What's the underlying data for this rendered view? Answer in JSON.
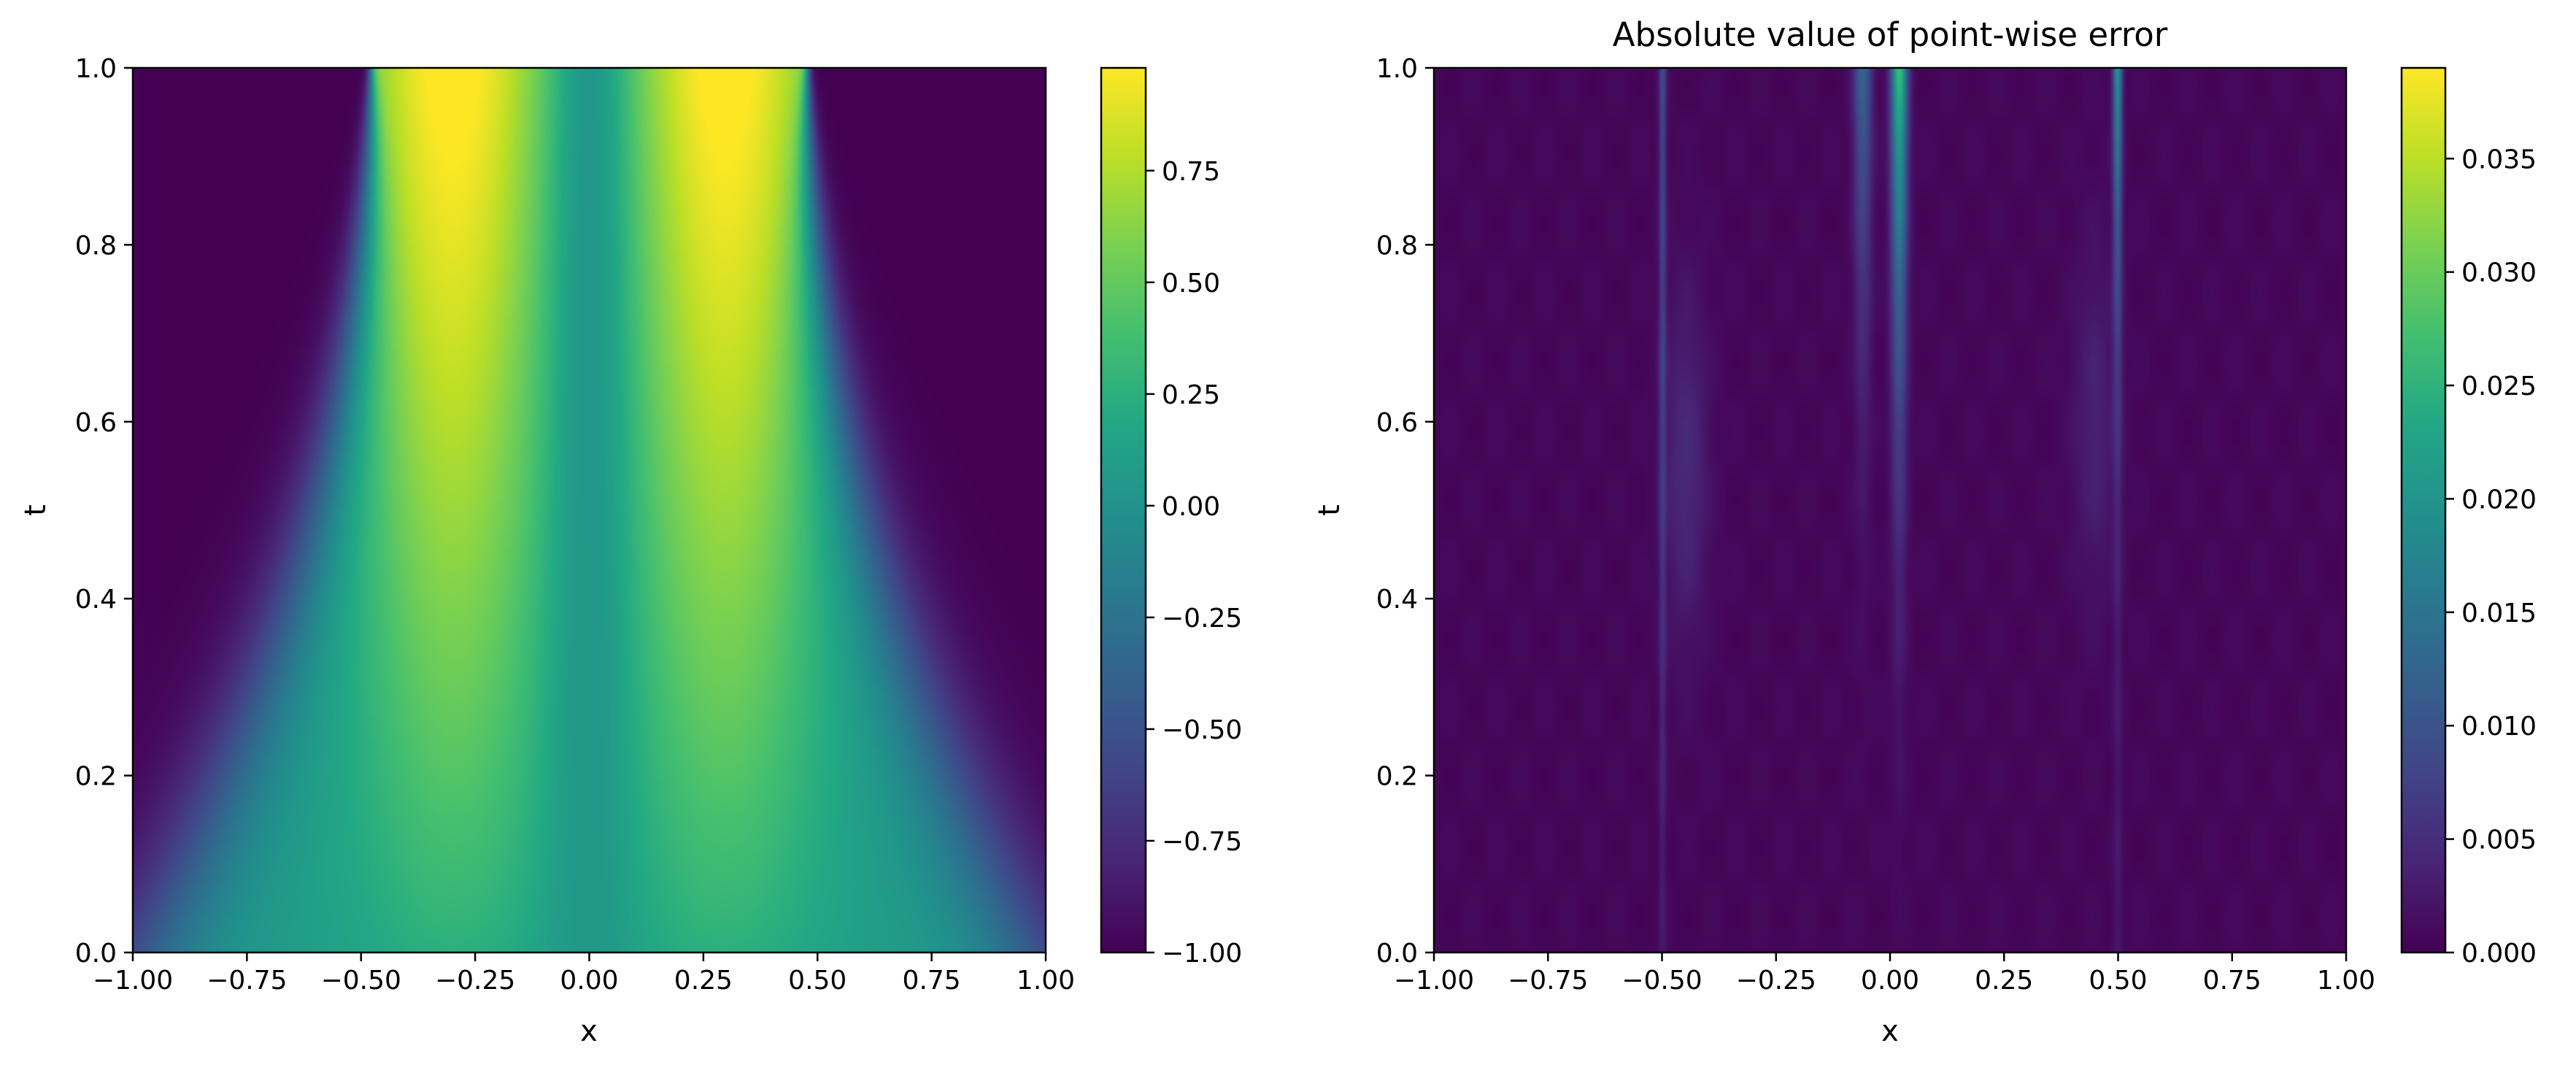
{
  "chart_data": [
    {
      "type": "heatmap",
      "title": "",
      "xlabel": "x",
      "ylabel": "t",
      "xlim": [
        -1.0,
        1.0
      ],
      "ylim": [
        0.0,
        1.0
      ],
      "x_ticks": [
        "−1.00",
        "−0.75",
        "−0.50",
        "−0.25",
        "0.00",
        "0.25",
        "0.50",
        "0.75",
        "1.00"
      ],
      "y_ticks": [
        "0.0",
        "0.2",
        "0.4",
        "0.6",
        "0.8",
        "1.0"
      ],
      "colormap": "viridis",
      "colorbar": {
        "min": -1.0,
        "max": 0.98,
        "ticks": [
          "−1.00",
          "−0.75",
          "−0.50",
          "−0.25",
          "0.00",
          "0.25",
          "0.50",
          "0.75"
        ]
      },
      "field": "Allen-Cahn style solution u(x,t): starts near 0 in the middle, tends to -1 outside |x|>0.5 and +1 for 0.05<|x|<0.5 as t increases"
    },
    {
      "type": "heatmap",
      "title": "Absolute value of point-wise error",
      "xlabel": "x",
      "ylabel": "t",
      "xlim": [
        -1.0,
        1.0
      ],
      "ylim": [
        0.0,
        1.0
      ],
      "x_ticks": [
        "−1.00",
        "−0.75",
        "−0.50",
        "−0.25",
        "0.00",
        "0.25",
        "0.50",
        "0.75",
        "1.00"
      ],
      "y_ticks": [
        "0.0",
        "0.2",
        "0.4",
        "0.6",
        "0.8",
        "1.0"
      ],
      "colormap": "viridis",
      "colorbar": {
        "min": 0.0,
        "max": 0.039,
        "ticks": [
          "0.000",
          "0.005",
          "0.010",
          "0.015",
          "0.020",
          "0.025",
          "0.030",
          "0.035"
        ]
      },
      "error_peaks_x": [
        -0.5,
        0.0,
        0.5
      ]
    }
  ]
}
